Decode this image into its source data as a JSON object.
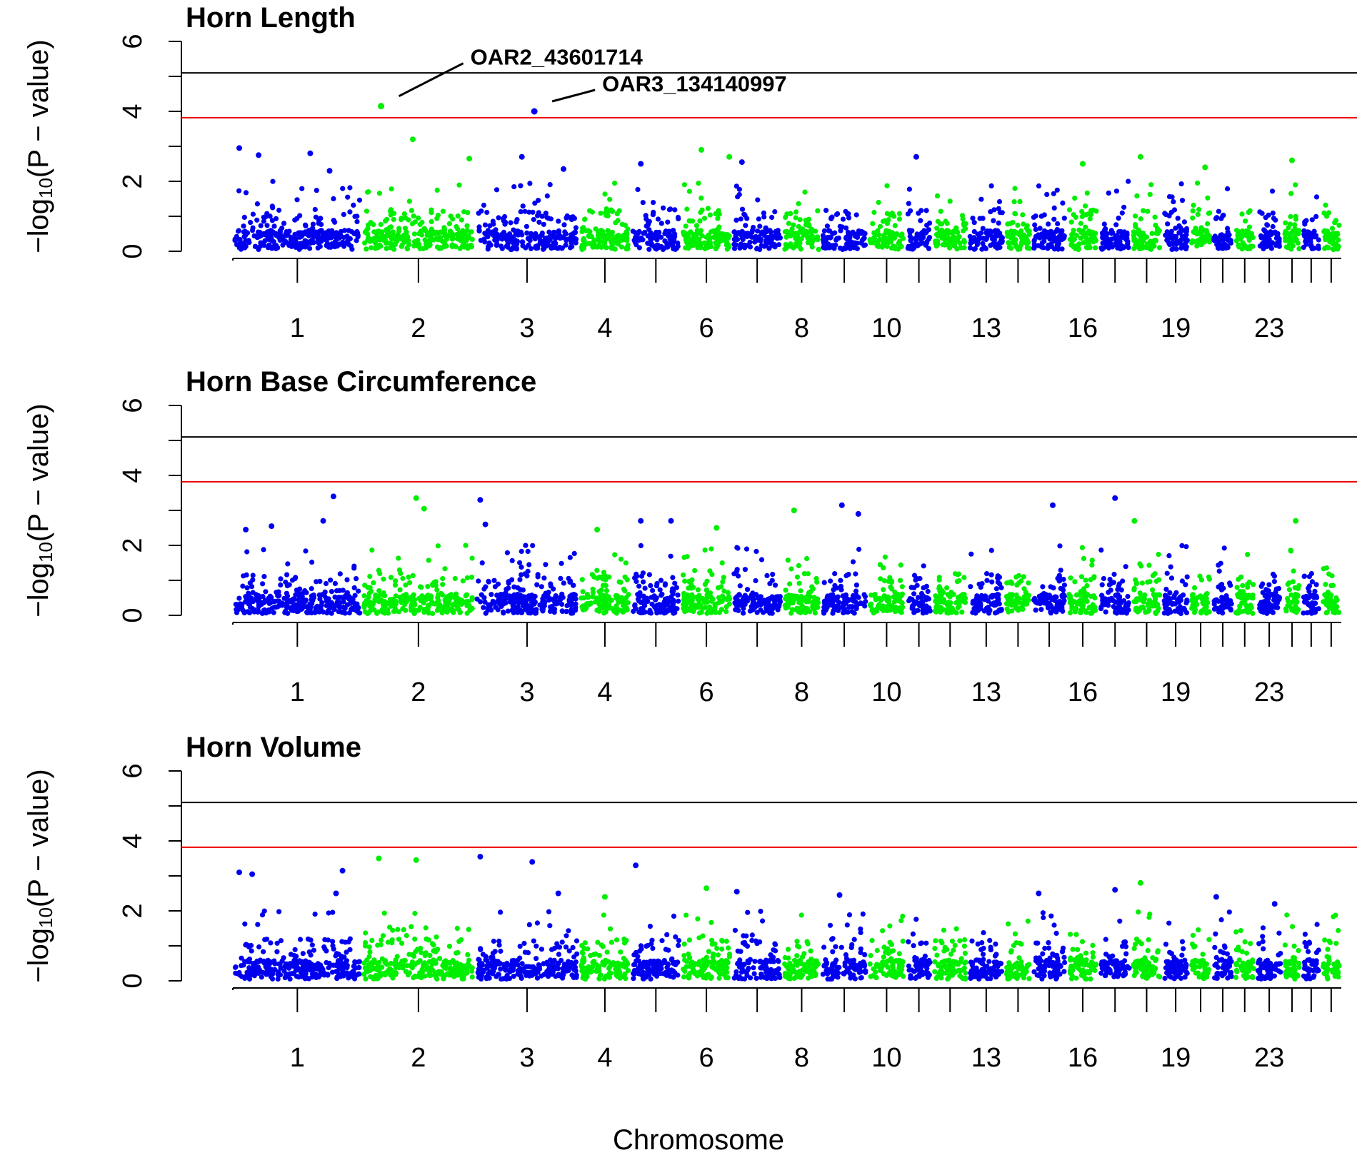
{
  "chart_data": {
    "type": "scatter",
    "subtype": "manhattan",
    "xlabel": "Chromosome",
    "ylabel_prefix": "−log",
    "ylabel_sub": "10",
    "ylabel_suffix": "(P − value)",
    "ylim": [
      0,
      6
    ],
    "yticks": [
      0,
      2,
      4,
      6
    ],
    "colors": {
      "blue": "#0000ee",
      "green": "#00ee00",
      "genomewide_line": "#000000",
      "suggestive_line": "#ee0000"
    },
    "thresholds": {
      "genomewide": 5.1,
      "suggestive": 3.82
    },
    "chromosomes": [
      {
        "chr": 1,
        "size": 300,
        "label": "1"
      },
      {
        "chr": 2,
        "size": 263,
        "label": "2"
      },
      {
        "chr": 3,
        "size": 242,
        "label": "3"
      },
      {
        "chr": 4,
        "size": 120,
        "label": "4"
      },
      {
        "chr": 5,
        "size": 117,
        "label": ""
      },
      {
        "chr": 6,
        "size": 118,
        "label": "6"
      },
      {
        "chr": 7,
        "size": 118,
        "label": ""
      },
      {
        "chr": 8,
        "size": 89,
        "label": "8"
      },
      {
        "chr": 9,
        "size": 109,
        "label": ""
      },
      {
        "chr": 10,
        "size": 88,
        "label": "10"
      },
      {
        "chr": 11,
        "size": 62,
        "label": ""
      },
      {
        "chr": 12,
        "size": 83,
        "label": ""
      },
      {
        "chr": 13,
        "size": 85,
        "label": "13"
      },
      {
        "chr": 14,
        "size": 63,
        "label": ""
      },
      {
        "chr": 15,
        "size": 82,
        "label": ""
      },
      {
        "chr": 16,
        "size": 74,
        "label": "16"
      },
      {
        "chr": 17,
        "size": 76,
        "label": ""
      },
      {
        "chr": 18,
        "size": 71,
        "label": ""
      },
      {
        "chr": 19,
        "size": 64,
        "label": "19"
      },
      {
        "chr": 20,
        "size": 52,
        "label": ""
      },
      {
        "chr": 21,
        "size": 51,
        "label": ""
      },
      {
        "chr": 22,
        "size": 51,
        "label": ""
      },
      {
        "chr": 23,
        "size": 63,
        "label": "23"
      },
      {
        "chr": 24,
        "size": 43,
        "label": ""
      },
      {
        "chr": 25,
        "size": 46,
        "label": ""
      },
      {
        "chr": 26,
        "size": 47,
        "label": ""
      }
    ],
    "panels": [
      {
        "title": "Horn Length",
        "seed": 11,
        "peaks": [
          {
            "chr": 1,
            "pos": 0.05,
            "y": 2.95
          },
          {
            "chr": 1,
            "pos": 0.2,
            "y": 2.75
          },
          {
            "chr": 1,
            "pos": 0.6,
            "y": 2.8
          },
          {
            "chr": 1,
            "pos": 0.75,
            "y": 2.3
          },
          {
            "chr": 2,
            "pos": 0.45,
            "y": 3.2
          },
          {
            "chr": 2,
            "pos": 0.95,
            "y": 2.65
          },
          {
            "chr": 3,
            "pos": 0.45,
            "y": 2.7
          },
          {
            "chr": 3,
            "pos": 0.85,
            "y": 2.35
          },
          {
            "chr": 5,
            "pos": 0.2,
            "y": 2.5
          },
          {
            "chr": 6,
            "pos": 0.4,
            "y": 2.9
          },
          {
            "chr": 6,
            "pos": 0.95,
            "y": 2.7
          },
          {
            "chr": 7,
            "pos": 0.2,
            "y": 2.55
          },
          {
            "chr": 11,
            "pos": 0.4,
            "y": 2.7
          },
          {
            "chr": 16,
            "pos": 0.5,
            "y": 2.5
          },
          {
            "chr": 18,
            "pos": 0.3,
            "y": 2.7
          },
          {
            "chr": 20,
            "pos": 0.7,
            "y": 2.4
          },
          {
            "chr": 24,
            "pos": 0.5,
            "y": 2.6
          }
        ],
        "highlights": [
          {
            "chr": 2,
            "pos": 0.17,
            "y": 4.15,
            "label": "OAR2_43601714"
          },
          {
            "chr": 3,
            "pos": 0.57,
            "y": 4.0,
            "label": "OAR3_134140997"
          }
        ]
      },
      {
        "title": "Horn Base Circumference",
        "seed": 23,
        "peaks": [
          {
            "chr": 1,
            "pos": 0.1,
            "y": 2.45
          },
          {
            "chr": 1,
            "pos": 0.3,
            "y": 2.55
          },
          {
            "chr": 1,
            "pos": 0.78,
            "y": 3.4
          },
          {
            "chr": 1,
            "pos": 0.7,
            "y": 2.7
          },
          {
            "chr": 2,
            "pos": 0.48,
            "y": 3.35
          },
          {
            "chr": 2,
            "pos": 0.55,
            "y": 3.05
          },
          {
            "chr": 3,
            "pos": 0.05,
            "y": 3.3
          },
          {
            "chr": 3,
            "pos": 0.1,
            "y": 2.6
          },
          {
            "chr": 4,
            "pos": 0.35,
            "y": 2.45
          },
          {
            "chr": 5,
            "pos": 0.2,
            "y": 2.7
          },
          {
            "chr": 5,
            "pos": 0.8,
            "y": 2.7
          },
          {
            "chr": 6,
            "pos": 0.7,
            "y": 2.5
          },
          {
            "chr": 8,
            "pos": 0.3,
            "y": 3.0
          },
          {
            "chr": 9,
            "pos": 0.45,
            "y": 3.15
          },
          {
            "chr": 9,
            "pos": 0.8,
            "y": 2.9
          },
          {
            "chr": 15,
            "pos": 0.6,
            "y": 3.15
          },
          {
            "chr": 17,
            "pos": 0.5,
            "y": 3.35
          },
          {
            "chr": 18,
            "pos": 0.1,
            "y": 2.7
          },
          {
            "chr": 24,
            "pos": 0.7,
            "y": 2.7
          }
        ],
        "highlights": []
      },
      {
        "title": "Horn Volume",
        "seed": 37,
        "peaks": [
          {
            "chr": 1,
            "pos": 0.05,
            "y": 3.1
          },
          {
            "chr": 1,
            "pos": 0.15,
            "y": 3.05
          },
          {
            "chr": 1,
            "pos": 0.85,
            "y": 3.15
          },
          {
            "chr": 1,
            "pos": 0.8,
            "y": 2.5
          },
          {
            "chr": 2,
            "pos": 0.15,
            "y": 3.5
          },
          {
            "chr": 2,
            "pos": 0.48,
            "y": 3.45
          },
          {
            "chr": 3,
            "pos": 0.05,
            "y": 3.55
          },
          {
            "chr": 3,
            "pos": 0.55,
            "y": 3.4
          },
          {
            "chr": 3,
            "pos": 0.8,
            "y": 2.5
          },
          {
            "chr": 4,
            "pos": 0.5,
            "y": 2.4
          },
          {
            "chr": 5,
            "pos": 0.1,
            "y": 3.3
          },
          {
            "chr": 6,
            "pos": 0.5,
            "y": 2.65
          },
          {
            "chr": 7,
            "pos": 0.1,
            "y": 2.55
          },
          {
            "chr": 9,
            "pos": 0.4,
            "y": 2.45
          },
          {
            "chr": 15,
            "pos": 0.2,
            "y": 2.5
          },
          {
            "chr": 17,
            "pos": 0.5,
            "y": 2.6
          },
          {
            "chr": 18,
            "pos": 0.3,
            "y": 2.8
          },
          {
            "chr": 21,
            "pos": 0.2,
            "y": 2.4
          },
          {
            "chr": 23,
            "pos": 0.7,
            "y": 2.2
          }
        ],
        "highlights": []
      }
    ]
  }
}
